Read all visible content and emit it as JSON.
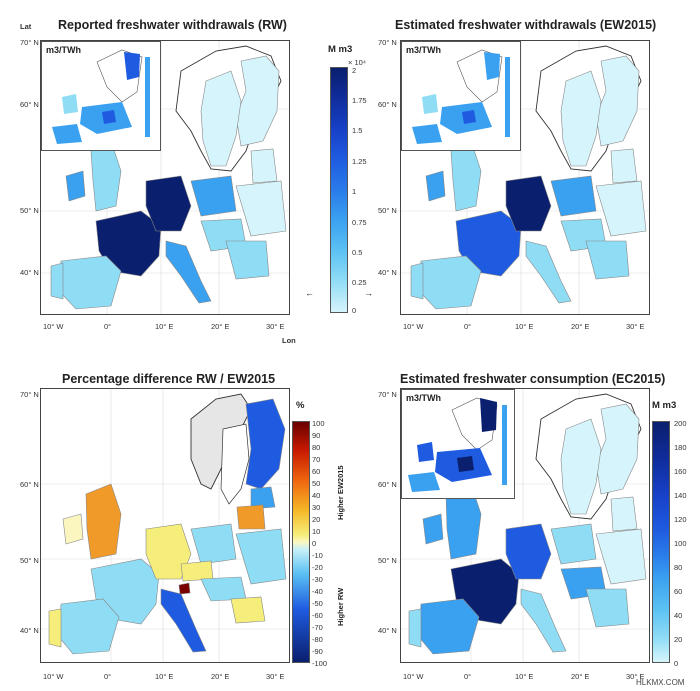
{
  "panels": {
    "rw": {
      "title": "Reported freshwater withdrawals (RW)",
      "inset_label": "m3/TWh"
    },
    "ew": {
      "title": "Estimated freshwater withdrawals (EW2015)",
      "inset_label": "m3/TWh"
    },
    "pd": {
      "title": "Percentage difference RW / EW2015"
    },
    "ec": {
      "title": "Estimated freshwater consumption (EC2015)",
      "inset_label": "m3/TWh"
    }
  },
  "axes": {
    "lat_label": "Lat",
    "lon_label": "Lon",
    "lat_ticks": [
      "70° N",
      "60° N",
      "50° N",
      "40° N"
    ],
    "lon_ticks": [
      "10° W",
      "0°",
      "10° E",
      "20° E",
      "30° E"
    ]
  },
  "colorbar_top": {
    "unit": "M m3",
    "exponent": "× 10⁴",
    "ticks": [
      "2",
      "1.75",
      "1.5",
      "1.25",
      "1",
      "0.75",
      "0.5",
      "0.25",
      "0"
    ]
  },
  "colorbar_pd": {
    "unit": "%",
    "ticks": [
      "100",
      "90",
      "80",
      "70",
      "60",
      "50",
      "40",
      "30",
      "20",
      "10",
      "0",
      "-10",
      "-20",
      "-30",
      "-40",
      "-50",
      "-60",
      "-70",
      "-80",
      "-90",
      "-100"
    ],
    "higher_top": "Higher EW2015",
    "higher_bottom": "Higher RW"
  },
  "colorbar_ec": {
    "unit": "M m3",
    "ticks": [
      "200",
      "180",
      "160",
      "140",
      "120",
      "100",
      "80",
      "60",
      "40",
      "20",
      "0"
    ]
  },
  "arrows": {
    "left": "←",
    "right": "→"
  },
  "watermark": "HLKMX.COM",
  "colors": {
    "dark": "#0a1f6e",
    "blue": "#1f5be0",
    "mid": "#3aa0f0",
    "light": "#8fdcf5",
    "pale": "#d6f4fb",
    "orange": "#f09a2a",
    "yellow": "#f6ee7a",
    "paleyellow": "#fbf6c0",
    "grey": "#e6e6e6"
  }
}
